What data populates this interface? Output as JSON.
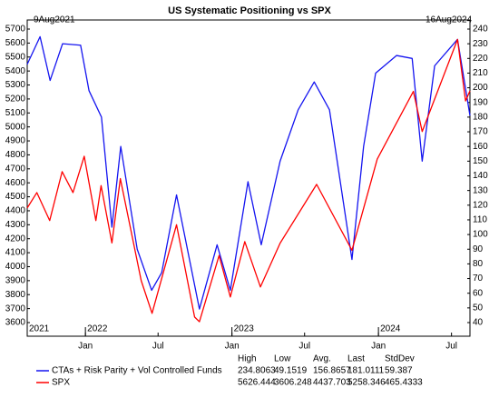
{
  "chart_data": {
    "type": "line",
    "title": "US Systematic Positioning vs SPX",
    "start_label": "9Aug2021",
    "end_label": "16Aug2024",
    "xlim": [
      "2021-08-09",
      "2024-08-16"
    ],
    "xticks": [
      {
        "value": "2022-01-01",
        "label": "Jan"
      },
      {
        "value": "2022-07-01",
        "label": "Jul"
      },
      {
        "value": "2023-01-01",
        "label": "Jan"
      },
      {
        "value": "2023-07-01",
        "label": "Jul"
      },
      {
        "value": "2024-01-01",
        "label": "Jan"
      },
      {
        "value": "2024-07-01",
        "label": "Jul"
      }
    ],
    "year_labels": [
      {
        "value": "2021-08-09",
        "label": "2021"
      },
      {
        "value": "2022-01-01",
        "label": "2022"
      },
      {
        "value": "2023-01-01",
        "label": "2023"
      },
      {
        "value": "2024-01-01",
        "label": "2024"
      }
    ],
    "ylim": [
      3600,
      5700
    ],
    "yticks": [
      3600,
      3700,
      3800,
      3900,
      4000,
      4100,
      4200,
      4300,
      4400,
      4500,
      4600,
      4700,
      4800,
      4900,
      5000,
      5100,
      5200,
      5300,
      5400,
      5500,
      5600,
      5700
    ],
    "y2lim": [
      40,
      240
    ],
    "y2ticks": [
      40,
      50,
      60,
      70,
      80,
      90,
      100,
      110,
      120,
      130,
      140,
      150,
      160,
      170,
      180,
      190,
      200,
      210,
      220,
      230,
      240
    ],
    "stats_columns": [
      "High",
      "Low",
      "Avg.",
      "Last",
      "StdDev"
    ],
    "series": [
      {
        "name": "CTAs + Risk Parity + Vol Controlled Funds",
        "color": "#1414f0",
        "axis": "y2",
        "x": [
          "2021-08-09",
          "2021-09-10",
          "2021-10-05",
          "2021-11-05",
          "2021-12-20",
          "2022-01-10",
          "2022-02-10",
          "2022-03-08",
          "2022-03-30",
          "2022-05-10",
          "2022-06-15",
          "2022-07-10",
          "2022-08-16",
          "2022-10-12",
          "2022-11-25",
          "2022-12-28",
          "2023-02-10",
          "2023-03-15",
          "2023-05-01",
          "2023-06-15",
          "2023-07-25",
          "2023-09-01",
          "2023-10-27",
          "2023-11-25",
          "2023-12-25",
          "2024-02-15",
          "2024-03-25",
          "2024-04-19",
          "2024-05-20",
          "2024-07-16",
          "2024-08-16"
        ],
        "values": [
          216,
          234.8,
          205,
          230,
          229,
          198,
          180,
          105,
          160,
          90,
          62,
          74,
          127,
          49.2,
          93,
          62,
          136,
          93,
          150,
          185,
          204,
          185,
          83,
          160,
          210,
          222,
          220,
          150,
          215,
          233,
          181
        ],
        "stats": [
          234.8063,
          49.1519,
          156.8657,
          181.0111,
          59.387
        ]
      },
      {
        "name": "SPX",
        "color": "#ff0000",
        "x": [
          "2021-08-09",
          "2021-09-02",
          "2021-10-04",
          "2021-11-04",
          "2021-12-01",
          "2021-12-29",
          "2022-01-27",
          "2022-02-09",
          "2022-03-08",
          "2022-03-29",
          "2022-05-20",
          "2022-06-16",
          "2022-08-16",
          "2022-09-30",
          "2022-10-12",
          "2022-11-30",
          "2022-12-28",
          "2023-02-02",
          "2023-03-13",
          "2023-05-01",
          "2023-07-31",
          "2023-10-27",
          "2023-12-29",
          "2024-03-28",
          "2024-04-19",
          "2024-07-16",
          "2024-08-05",
          "2024-08-16"
        ],
        "values": [
          4420,
          4530,
          4330,
          4680,
          4530,
          4790,
          4330,
          4580,
          4170,
          4630,
          3900,
          3666,
          4300,
          3640,
          3606,
          4080,
          3783,
          4179,
          3855,
          4168,
          4589,
          4117,
          4770,
          5254,
          4967,
          5626,
          5186,
          5258
        ],
        "stats": [
          5626.444,
          3606.248,
          4437.703,
          5258.346,
          465.4333
        ]
      }
    ]
  }
}
